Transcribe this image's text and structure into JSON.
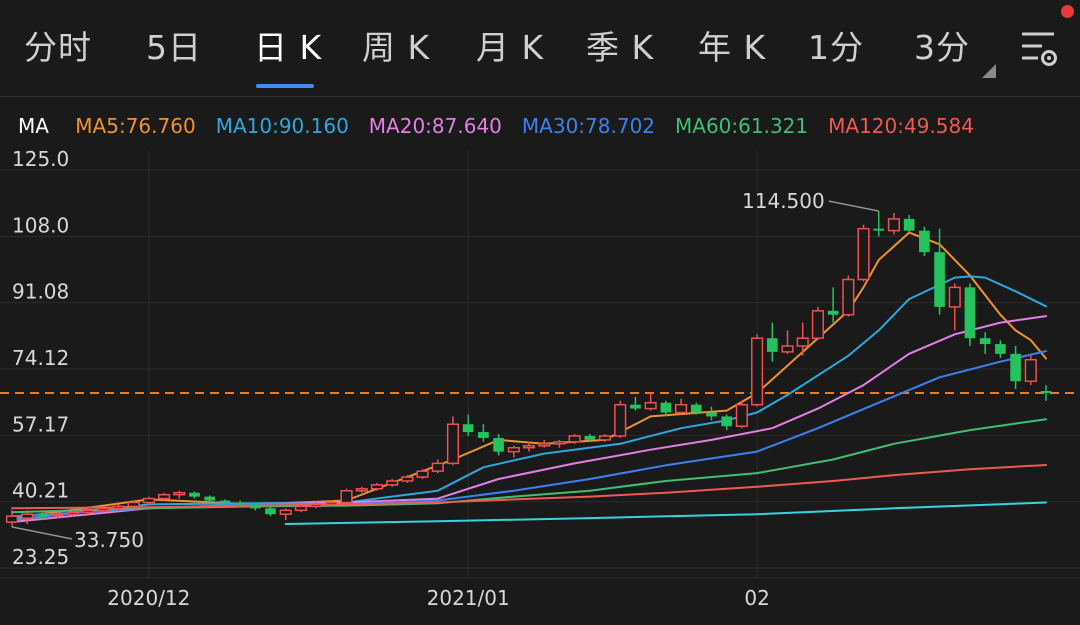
{
  "tabs": [
    {
      "label": "分时",
      "active": false
    },
    {
      "label": "5日",
      "active": false
    },
    {
      "label": "日 K",
      "active": true
    },
    {
      "label": "周 K",
      "active": false
    },
    {
      "label": "月 K",
      "active": false
    },
    {
      "label": "季 K",
      "active": false
    },
    {
      "label": "年 K",
      "active": false
    },
    {
      "label": "1分",
      "active": false
    },
    {
      "label": "3分",
      "active": false
    }
  ],
  "ma_legend": {
    "label": "MA",
    "items": [
      {
        "text": "MA5:76.760",
        "color": "#f0922e"
      },
      {
        "text": "MA10:90.160",
        "color": "#2ba8e0"
      },
      {
        "text": "MA20:87.640",
        "color": "#e47fe6"
      },
      {
        "text": "MA30:78.702",
        "color": "#3b82f0"
      },
      {
        "text": "MA60:61.321",
        "color": "#3fbf74"
      },
      {
        "text": "MA120:49.584",
        "color": "#ee5a52"
      }
    ]
  },
  "colors": {
    "up": "#f05050",
    "down": "#25c25e",
    "ma5": "#f0922e",
    "ma10": "#2ba8e0",
    "ma20": "#e47fe6",
    "ma30": "#3b82f0",
    "ma60": "#3fbf74",
    "ma120": "#ee5a52",
    "ma250": "#33d6e0",
    "current_price_line": "#f07a1c",
    "tab_underline": "#3e8ef7"
  },
  "chart_data": {
    "type": "candlestick",
    "y_ticks": [
      "125.0",
      "108.0",
      "91.08",
      "74.12",
      "57.17",
      "40.21",
      "23.25"
    ],
    "ylim": [
      23.25,
      125.0
    ],
    "x_ticks": [
      {
        "label": "2020/12",
        "index": 9
      },
      {
        "label": "2021/01",
        "index": 30
      },
      {
        "label": "02",
        "index": 49
      }
    ],
    "current_price": 68.0,
    "annotations": [
      {
        "text": "114.500",
        "index": 57,
        "value": 114.5
      },
      {
        "text": "33.750",
        "index": 0,
        "value": 33.75
      }
    ],
    "candles": [
      [
        35.0,
        38.0,
        33.75,
        36.5
      ],
      [
        36.0,
        38.0,
        34.5,
        37.0
      ],
      [
        37.0,
        37.5,
        35.5,
        36.8
      ],
      [
        36.8,
        37.5,
        36.0,
        37.0
      ],
      [
        37.0,
        38.0,
        36.5,
        37.5
      ],
      [
        37.5,
        38.5,
        37.0,
        38.0
      ],
      [
        38.0,
        39.0,
        37.5,
        38.5
      ],
      [
        38.5,
        39.5,
        38.0,
        39.0
      ],
      [
        39.0,
        40.5,
        38.5,
        40.0
      ],
      [
        40.0,
        41.5,
        39.5,
        41.0
      ],
      [
        41.0,
        42.5,
        40.5,
        42.0
      ],
      [
        42.0,
        43.0,
        41.0,
        42.5
      ],
      [
        42.5,
        42.8,
        41.0,
        41.5
      ],
      [
        41.5,
        41.8,
        40.0,
        40.5
      ],
      [
        40.5,
        40.8,
        39.5,
        40.0
      ],
      [
        40.0,
        40.5,
        39.0,
        39.5
      ],
      [
        39.5,
        39.8,
        38.0,
        38.5
      ],
      [
        38.5,
        39.0,
        36.5,
        37.0
      ],
      [
        37.0,
        38.5,
        35.5,
        38.0
      ],
      [
        38.0,
        39.5,
        37.5,
        39.0
      ],
      [
        39.0,
        40.0,
        38.5,
        39.5
      ],
      [
        39.5,
        40.5,
        39.0,
        40.0
      ],
      [
        40.0,
        43.5,
        39.5,
        43.0
      ],
      [
        43.0,
        44.0,
        42.5,
        43.5
      ],
      [
        43.5,
        45.0,
        43.0,
        44.5
      ],
      [
        44.5,
        46.0,
        44.0,
        45.5
      ],
      [
        45.5,
        47.0,
        45.0,
        46.5
      ],
      [
        46.5,
        48.5,
        46.0,
        48.0
      ],
      [
        48.0,
        51.0,
        47.5,
        50.0
      ],
      [
        50.0,
        62.0,
        49.5,
        60.0
      ],
      [
        60.0,
        62.5,
        57.0,
        58.0
      ],
      [
        58.0,
        60.0,
        55.5,
        56.5
      ],
      [
        56.5,
        57.5,
        52.0,
        53.0
      ],
      [
        53.0,
        54.5,
        51.5,
        54.0
      ],
      [
        54.0,
        55.5,
        53.0,
        54.5
      ],
      [
        54.5,
        56.0,
        54.0,
        55.0
      ],
      [
        55.0,
        56.0,
        54.0,
        55.5
      ],
      [
        55.5,
        57.5,
        55.0,
        57.0
      ],
      [
        57.0,
        57.5,
        55.5,
        56.0
      ],
      [
        56.0,
        57.5,
        55.5,
        57.0
      ],
      [
        57.0,
        66.0,
        56.5,
        65.0
      ],
      [
        65.0,
        67.0,
        63.5,
        64.0
      ],
      [
        64.0,
        68.0,
        63.5,
        65.5
      ],
      [
        65.5,
        66.0,
        62.0,
        63.0
      ],
      [
        63.0,
        66.5,
        62.5,
        65.0
      ],
      [
        65.0,
        65.5,
        62.5,
        63.0
      ],
      [
        63.0,
        64.5,
        61.0,
        62.0
      ],
      [
        62.0,
        62.5,
        58.5,
        59.5
      ],
      [
        59.5,
        66.0,
        59.0,
        65.0
      ],
      [
        65.0,
        83.0,
        64.5,
        82.0
      ],
      [
        82.0,
        86.0,
        76.0,
        78.5
      ],
      [
        78.5,
        84.0,
        78.0,
        80.0
      ],
      [
        80.0,
        86.0,
        77.5,
        82.0
      ],
      [
        82.0,
        90.0,
        81.5,
        89.0
      ],
      [
        89.0,
        95.0,
        86.0,
        88.0
      ],
      [
        88.0,
        98.0,
        87.5,
        97.0
      ],
      [
        97.0,
        111.0,
        96.5,
        110.0
      ],
      [
        110.0,
        114.5,
        108.0,
        109.5
      ],
      [
        109.5,
        114.0,
        108.5,
        112.5
      ],
      [
        112.5,
        113.5,
        109.0,
        109.5
      ],
      [
        109.5,
        110.5,
        103.0,
        104.0
      ],
      [
        104.0,
        110.0,
        88.0,
        90.0
      ],
      [
        90.0,
        96.0,
        84.0,
        95.0
      ],
      [
        95.0,
        96.0,
        80.0,
        82.0
      ],
      [
        82.0,
        83.5,
        78.0,
        80.5
      ],
      [
        80.5,
        81.5,
        77.0,
        78.0
      ],
      [
        78.0,
        80.0,
        69.0,
        71.0
      ],
      [
        71.0,
        77.5,
        70.0,
        76.5
      ],
      [
        68.5,
        70.0,
        66.0,
        68.0
      ]
    ],
    "ma_lines": [
      {
        "name": "MA5",
        "color_key": "ma5",
        "values": [
          [
            0,
            36.0
          ],
          [
            9,
            40.8
          ],
          [
            16,
            39.5
          ],
          [
            22,
            40.5
          ],
          [
            29,
            51.0
          ],
          [
            32,
            56.0
          ],
          [
            35,
            55.0
          ],
          [
            39,
            56.0
          ],
          [
            42,
            62.0
          ],
          [
            47,
            63.5
          ],
          [
            49,
            68.0
          ],
          [
            51,
            75.0
          ],
          [
            53,
            82.0
          ],
          [
            55,
            89.0
          ],
          [
            56,
            95.0
          ],
          [
            57,
            102.0
          ],
          [
            59,
            109.0
          ],
          [
            61,
            106.0
          ],
          [
            63,
            98.0
          ],
          [
            65,
            88.0
          ],
          [
            66,
            84.0
          ],
          [
            67,
            81.5
          ],
          [
            68,
            76.8
          ]
        ]
      },
      {
        "name": "MA10",
        "color_key": "ma10",
        "values": [
          [
            0,
            35.5
          ],
          [
            9,
            39.5
          ],
          [
            16,
            39.8
          ],
          [
            22,
            40.0
          ],
          [
            28,
            43.0
          ],
          [
            31,
            49.0
          ],
          [
            35,
            52.5
          ],
          [
            40,
            55.0
          ],
          [
            44,
            59.0
          ],
          [
            47,
            61.0
          ],
          [
            49,
            63.0
          ],
          [
            51,
            67.5
          ],
          [
            53,
            72.5
          ],
          [
            55,
            77.5
          ],
          [
            57,
            84.0
          ],
          [
            59,
            92.0
          ],
          [
            62,
            97.5
          ],
          [
            63,
            97.8
          ],
          [
            64,
            97.5
          ],
          [
            66,
            94.0
          ],
          [
            68,
            90.16
          ]
        ]
      },
      {
        "name": "MA20",
        "color_key": "ma20",
        "values": [
          [
            0,
            35.0
          ],
          [
            9,
            38.5
          ],
          [
            16,
            39.5
          ],
          [
            22,
            40.0
          ],
          [
            28,
            41.0
          ],
          [
            32,
            46.0
          ],
          [
            37,
            50.0
          ],
          [
            42,
            53.5
          ],
          [
            46,
            56.0
          ],
          [
            50,
            59.0
          ],
          [
            53,
            64.0
          ],
          [
            56,
            70.0
          ],
          [
            59,
            78.0
          ],
          [
            62,
            83.0
          ],
          [
            65,
            86.0
          ],
          [
            68,
            87.64
          ]
        ]
      },
      {
        "name": "MA30",
        "color_key": "ma30",
        "values": [
          [
            0,
            36.5
          ],
          [
            9,
            38.5
          ],
          [
            16,
            39.5
          ],
          [
            22,
            39.5
          ],
          [
            28,
            40.5
          ],
          [
            33,
            43.0
          ],
          [
            38,
            46.0
          ],
          [
            43,
            49.5
          ],
          [
            49,
            53.0
          ],
          [
            53,
            59.0
          ],
          [
            57,
            65.5
          ],
          [
            61,
            72.0
          ],
          [
            65,
            76.0
          ],
          [
            68,
            78.7
          ]
        ]
      },
      {
        "name": "MA60",
        "color_key": "ma60",
        "values": [
          [
            0,
            37.5
          ],
          [
            9,
            38.5
          ],
          [
            16,
            39.0
          ],
          [
            22,
            39.2
          ],
          [
            28,
            39.8
          ],
          [
            33,
            41.5
          ],
          [
            38,
            43.0
          ],
          [
            43,
            45.5
          ],
          [
            49,
            47.5
          ],
          [
            54,
            51.0
          ],
          [
            58,
            55.0
          ],
          [
            63,
            58.5
          ],
          [
            68,
            61.3
          ]
        ]
      },
      {
        "name": "MA120",
        "color_key": "ma120",
        "values": [
          [
            0,
            38.5
          ],
          [
            9,
            38.8
          ],
          [
            16,
            39.2
          ],
          [
            22,
            39.5
          ],
          [
            28,
            40.0
          ],
          [
            33,
            40.8
          ],
          [
            38,
            41.5
          ],
          [
            43,
            42.5
          ],
          [
            49,
            44.0
          ],
          [
            54,
            45.5
          ],
          [
            58,
            47.0
          ],
          [
            63,
            48.5
          ],
          [
            68,
            49.58
          ]
        ]
      },
      {
        "name": "MA250",
        "color_key": "ma250",
        "values": [
          [
            18,
            34.5
          ],
          [
            28,
            35.2
          ],
          [
            38,
            36.0
          ],
          [
            49,
            37.0
          ],
          [
            58,
            38.5
          ],
          [
            68,
            40.0
          ]
        ]
      }
    ]
  }
}
